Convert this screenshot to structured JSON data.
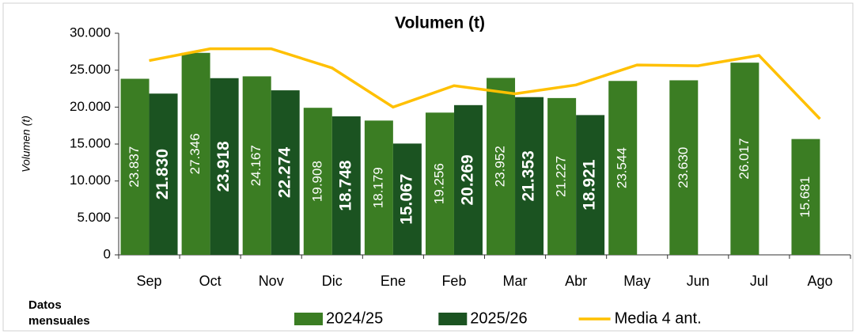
{
  "chart_data": {
    "type": "bar",
    "title": "Volumen (t)",
    "y_label": "Volumen (t)",
    "note": "Datos mensuales",
    "categories": [
      "Sep",
      "Oct",
      "Nov",
      "Dic",
      "Ene",
      "Feb",
      "Mar",
      "Abr",
      "May",
      "Jun",
      "Jul",
      "Ago"
    ],
    "series": [
      {
        "name": "2024/25",
        "type": "bar",
        "color": "#3b7d23",
        "values": [
          23837,
          27346,
          24167,
          19908,
          18179,
          19256,
          23952,
          21227,
          23544,
          23630,
          26017,
          15681
        ],
        "value_labels": [
          "23.837",
          "27.346",
          "24.167",
          "19.908",
          "18.179",
          "19.256",
          "23.952",
          "21.227",
          "23.544",
          "23.630",
          "26.017",
          "15.681"
        ]
      },
      {
        "name": "2025/26",
        "type": "bar",
        "color": "#1b5321",
        "values": [
          21830,
          23918,
          22274,
          18748,
          15067,
          20269,
          21353,
          18921,
          null,
          null,
          null,
          null
        ],
        "value_labels": [
          "21.830",
          "23.918",
          "22.274",
          "18.748",
          "15.067",
          "20.269",
          "21.353",
          "18.921",
          null,
          null,
          null,
          null
        ]
      },
      {
        "name": "Media 4 ant.",
        "type": "line",
        "color": "#ffc000",
        "values": [
          26300,
          27900,
          27900,
          25300,
          20000,
          22900,
          21800,
          23000,
          25700,
          25600,
          27000,
          18400
        ]
      }
    ],
    "ylim": [
      0,
      30000
    ],
    "yticks": [
      0,
      {
        "value": 5000,
        "label": "5.000"
      },
      {
        "value": 10000,
        "label": "10.000"
      },
      {
        "value": 15000,
        "label": "15.000"
      },
      {
        "value": 20000,
        "label": "20.000"
      },
      {
        "value": 25000,
        "label": "25.000"
      },
      {
        "value": 30000,
        "label": "30.000"
      }
    ],
    "legend": "bottom"
  }
}
